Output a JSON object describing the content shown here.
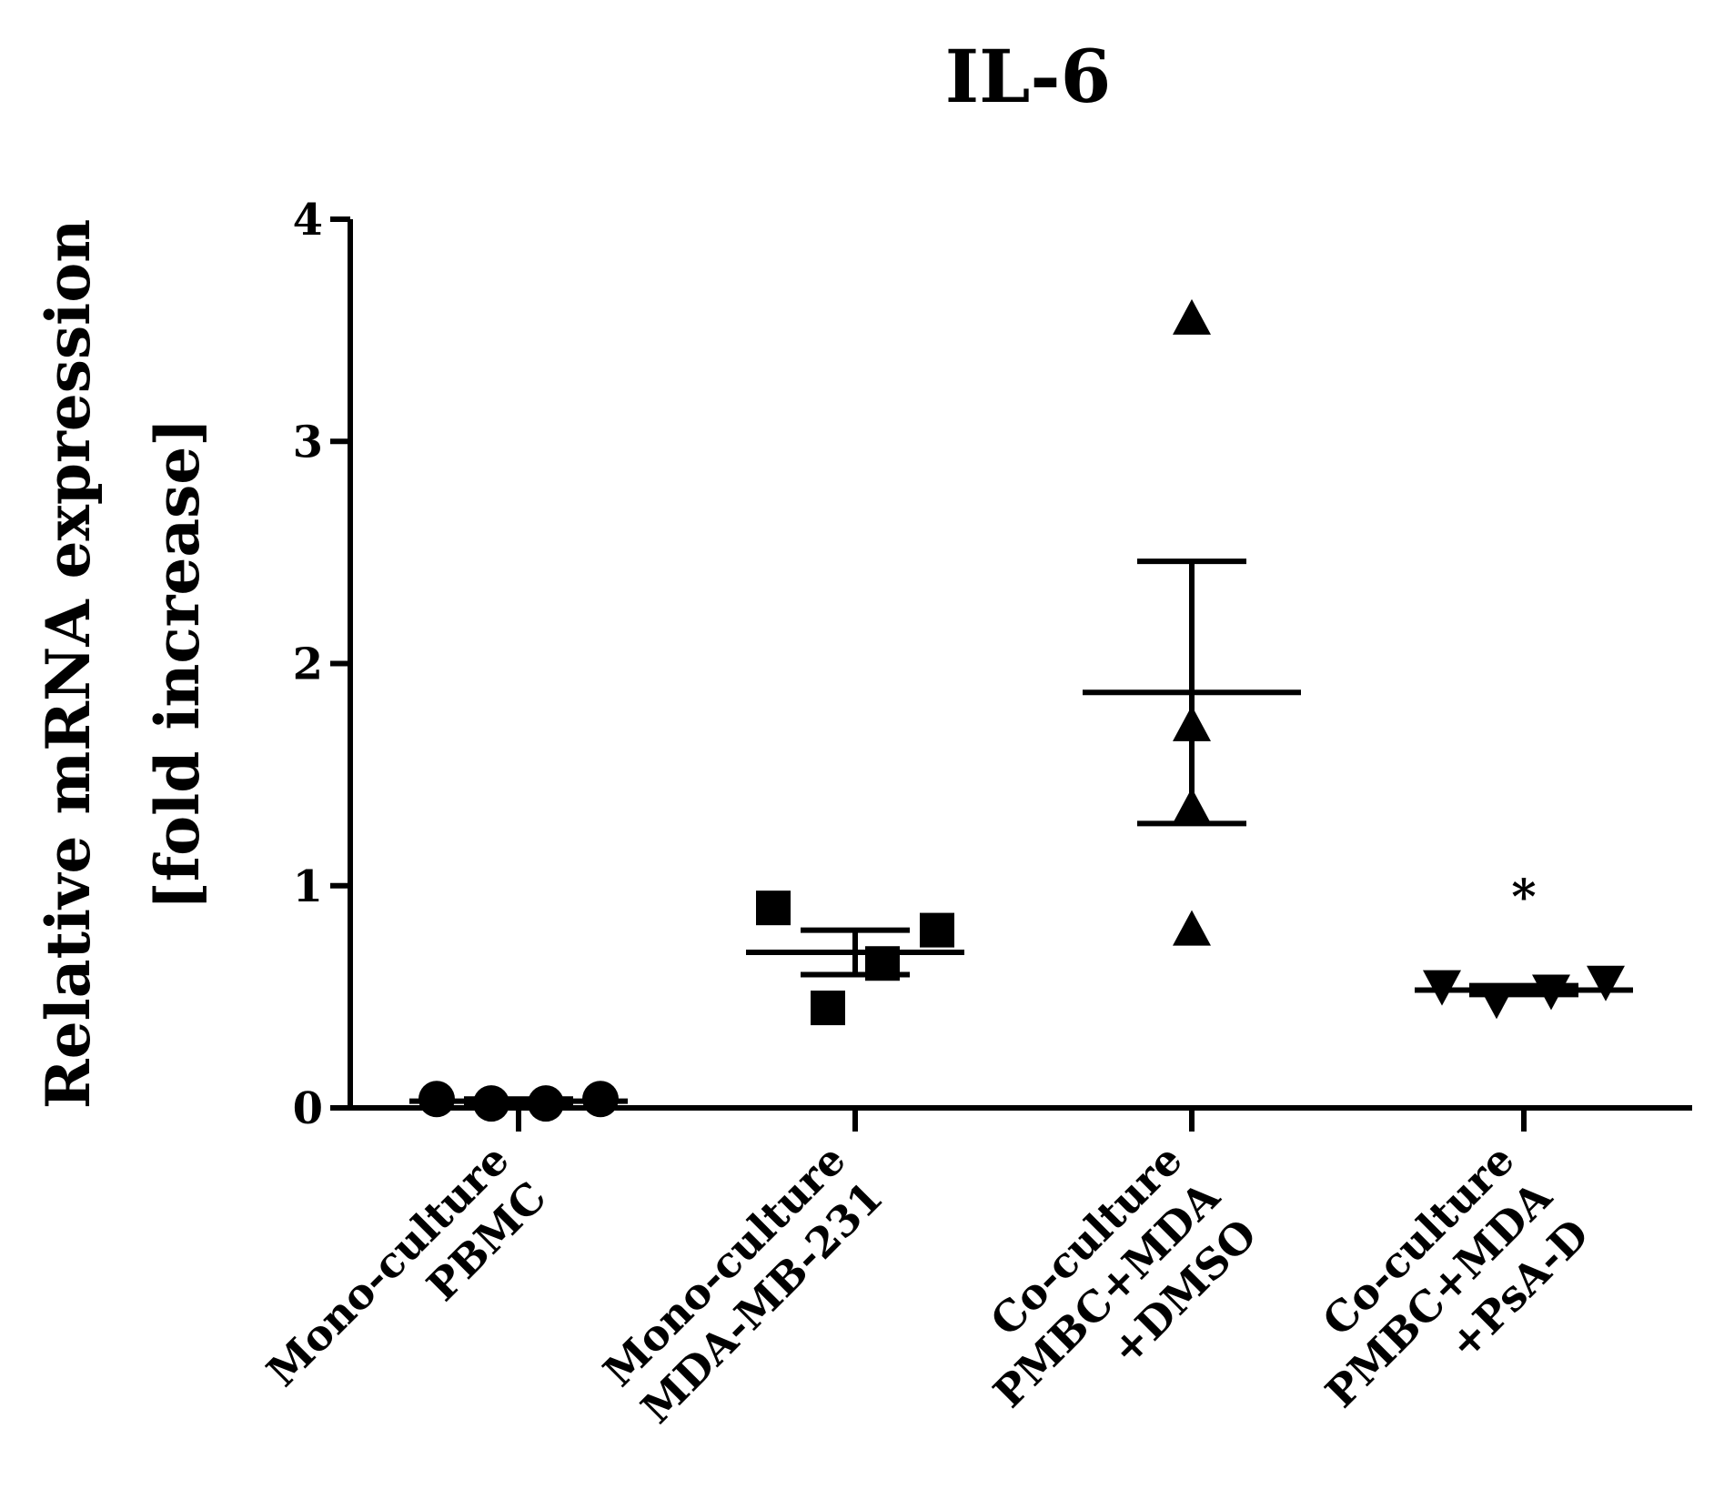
{
  "chart_data": {
    "type": "scatter",
    "title": "IL-6",
    "ylabel": [
      "Relative mRNA expression",
      "[fold increase]"
    ],
    "xlabel": "",
    "ylim": [
      0,
      4
    ],
    "yticks": [
      "0",
      "1",
      "2",
      "3",
      "4"
    ],
    "grid": false,
    "categories": [
      [
        "Mono-culture",
        "PBMC"
      ],
      [
        "Mono-culture",
        "MDA-MB-231"
      ],
      [
        "Co-culture",
        "PMBC+MDA",
        "+DMSO"
      ],
      [
        "Co-culture",
        "PMBC+MDA",
        "+PsA-D"
      ]
    ],
    "series": [
      {
        "name": "Mono-culture PBMC",
        "marker": "circle",
        "values": [
          0.04,
          0.02,
          0.02,
          0.04
        ],
        "mean": 0.03,
        "sem_low": 0.02,
        "sem_high": 0.04
      },
      {
        "name": "Mono-culture MDA-MB-231",
        "marker": "square",
        "values": [
          0.9,
          0.45,
          0.65,
          0.8
        ],
        "mean": 0.7,
        "sem_low": 0.6,
        "sem_high": 0.8
      },
      {
        "name": "Co-culture PMBC+MDA +DMSO",
        "marker": "triangle-up",
        "values": [
          3.55,
          1.72,
          1.35,
          0.8
        ],
        "mean": 1.87,
        "sem_low": 1.28,
        "sem_high": 2.46
      },
      {
        "name": "Co-culture PMBC+MDA +PsA-D",
        "marker": "triangle-down",
        "values": [
          0.55,
          0.49,
          0.53,
          0.57
        ],
        "mean": 0.53,
        "sem_low": 0.51,
        "sem_high": 0.55
      }
    ],
    "annotations": [
      {
        "category_index": 3,
        "text": "*",
        "y": 1.0
      }
    ]
  }
}
